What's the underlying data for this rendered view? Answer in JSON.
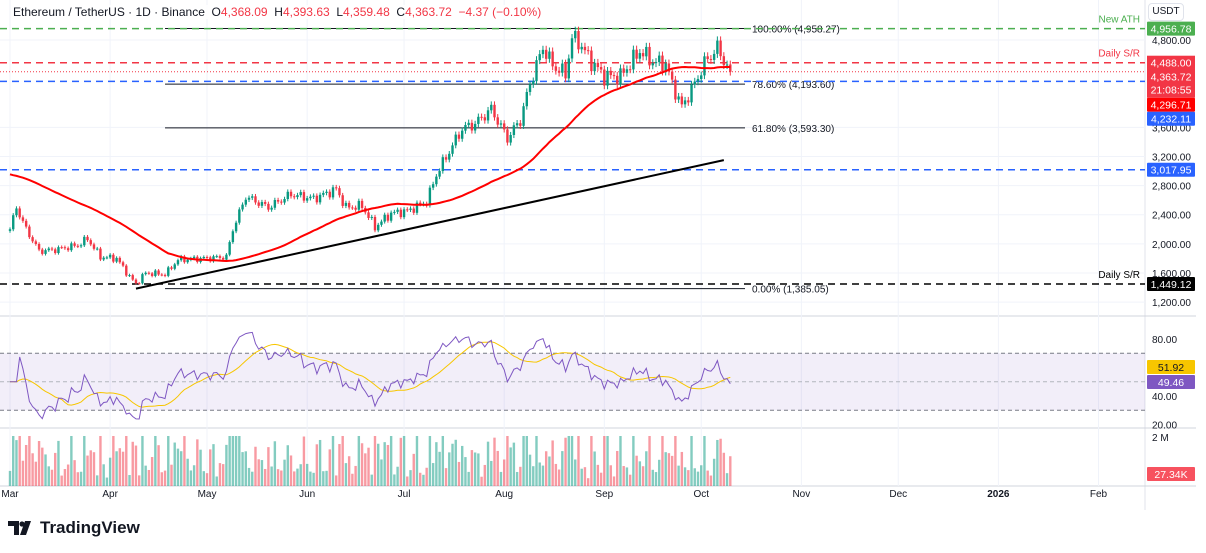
{
  "header": {
    "symbol": "Ethereum / TetherUS · 1D · Binance",
    "open_label": "O",
    "open": "4,368.09",
    "high_label": "H",
    "high": "4,393.63",
    "low_label": "L",
    "low": "4,359.48",
    "close_label": "C",
    "close": "4,363.72",
    "change": "−4.37 (−0.10%)"
  },
  "axis_unit": "USDT",
  "footer": {
    "brand": "TradingView",
    "logo_icon": "tradingview-logo-icon"
  },
  "colors": {
    "up": "#089981",
    "down": "#f23645",
    "ma": "#ff0000",
    "rsi": "#7e57c2",
    "rsi_ma": "#f7c600",
    "ath": "#4caf50",
    "support_blue": "#2962ff"
  },
  "chart_data": {
    "type": "candlestick",
    "price_axis": {
      "ticks": [
        "4,800.00",
        "3,600.00",
        "3,200.00",
        "2,800.00",
        "2,400.00",
        "2,000.00",
        "1,600.00",
        "1,200.00"
      ],
      "values": [
        4800,
        3600,
        3200,
        2800,
        2400,
        2000,
        1600,
        1200
      ]
    },
    "time_axis": {
      "labels": [
        "Mar",
        "Apr",
        "May",
        "Jun",
        "Jul",
        "Aug",
        "Sep",
        "Oct",
        "Nov",
        "Dec",
        "2026",
        "Feb"
      ],
      "dates": [
        "2025-03-01",
        "2025-04-01",
        "2025-05-01",
        "2025-06-01",
        "2025-07-01",
        "2025-08-01",
        "2025-09-01",
        "2025-10-01",
        "2025-11-01",
        "2025-12-01",
        "2026-01-01",
        "2026-02-01"
      ]
    },
    "close_path": [
      [
        "2025-03-01",
        2200
      ],
      [
        "2025-03-03",
        2500
      ],
      [
        "2025-03-06",
        2200
      ],
      [
        "2025-03-10",
        1900
      ],
      [
        "2025-03-15",
        1920
      ],
      [
        "2025-03-22",
        1980
      ],
      [
        "2025-03-25",
        2070
      ],
      [
        "2025-03-29",
        1820
      ],
      [
        "2025-04-03",
        1800
      ],
      [
        "2025-04-07",
        1550
      ],
      [
        "2025-04-09",
        1450
      ],
      [
        "2025-04-12",
        1600
      ],
      [
        "2025-04-18",
        1580
      ],
      [
        "2025-04-22",
        1780
      ],
      [
        "2025-04-30",
        1800
      ],
      [
        "2025-05-07",
        1820
      ],
      [
        "2025-05-09",
        2200
      ],
      [
        "2025-05-13",
        2650
      ],
      [
        "2025-05-20",
        2500
      ],
      [
        "2025-05-27",
        2680
      ],
      [
        "2025-06-03",
        2620
      ],
      [
        "2025-06-10",
        2750
      ],
      [
        "2025-06-13",
        2500
      ],
      [
        "2025-06-18",
        2520
      ],
      [
        "2025-06-22",
        2230
      ],
      [
        "2025-06-27",
        2420
      ],
      [
        "2025-07-02",
        2450
      ],
      [
        "2025-07-08",
        2580
      ],
      [
        "2025-07-11",
        2950
      ],
      [
        "2025-07-16",
        3350
      ],
      [
        "2025-07-19",
        3580
      ],
      [
        "2025-07-23",
        3650
      ],
      [
        "2025-07-28",
        3850
      ],
      [
        "2025-08-02",
        3450
      ],
      [
        "2025-08-06",
        3700
      ],
      [
        "2025-08-09",
        4200
      ],
      [
        "2025-08-13",
        4700
      ],
      [
        "2025-08-16",
        4450
      ],
      [
        "2025-08-20",
        4330
      ],
      [
        "2025-08-22",
        4830
      ],
      [
        "2025-08-24",
        4780
      ],
      [
        "2025-08-28",
        4500
      ],
      [
        "2025-09-01",
        4300
      ],
      [
        "2025-09-06",
        4300
      ],
      [
        "2025-09-12",
        4650
      ],
      [
        "2025-09-16",
        4500
      ],
      [
        "2025-09-20",
        4470
      ],
      [
        "2025-09-22",
        4200
      ],
      [
        "2025-09-25",
        3880
      ],
      [
        "2025-09-29",
        4200
      ],
      [
        "2025-10-02",
        4480
      ],
      [
        "2025-10-06",
        4690
      ],
      [
        "2025-10-08",
        4520
      ],
      [
        "2025-10-10",
        4363.72
      ]
    ],
    "moving_average": {
      "type": "SMA",
      "period": 50
    },
    "horizontal_levels": [
      {
        "label": "New ATH",
        "value": 4956.78,
        "price_label": "4,956.78",
        "color": "#4caf50",
        "style": "dashed"
      },
      {
        "label": "Daily S/R",
        "value": 4488.0,
        "price_label": "4,488.00",
        "color": "#f23645",
        "style": "dashed"
      },
      {
        "label": "",
        "value": 4232.11,
        "price_label": "4,232.11",
        "color": "#2962ff",
        "style": "dashed"
      },
      {
        "label": "",
        "value": 3017.95,
        "price_label": "3,017.95",
        "color": "#2962ff",
        "style": "dashed"
      },
      {
        "label": "Daily S/R",
        "value": 1449.12,
        "price_label": "1,449.12",
        "color": "#000000",
        "style": "dashed"
      }
    ],
    "fibonacci": [
      {
        "label": "100.00% (4,958.27)",
        "value": 4958.27
      },
      {
        "label": "78.60% (4,193.60)",
        "value": 4193.6
      },
      {
        "label": "61.80% (3,593.30)",
        "value": 3593.3
      },
      {
        "label": "0.00% (1,385.05)",
        "value": 1385.05
      }
    ],
    "trendline": [
      [
        "2025-04-09",
        1385
      ],
      [
        "2025-10-08",
        3150
      ]
    ],
    "price_badges": {
      "last": "4,363.72",
      "countdown": "21:08:55",
      "ma": "4,296.71"
    },
    "rsi": {
      "ticks": [
        "80.00",
        "40.00",
        "20.00"
      ],
      "tick_values": [
        80,
        40,
        20
      ],
      "band": [
        30,
        70
      ],
      "mid": 50,
      "value": "49.46",
      "ma_value": "51.92"
    },
    "volume": {
      "tick": "2 M",
      "value": "27.34K"
    }
  }
}
